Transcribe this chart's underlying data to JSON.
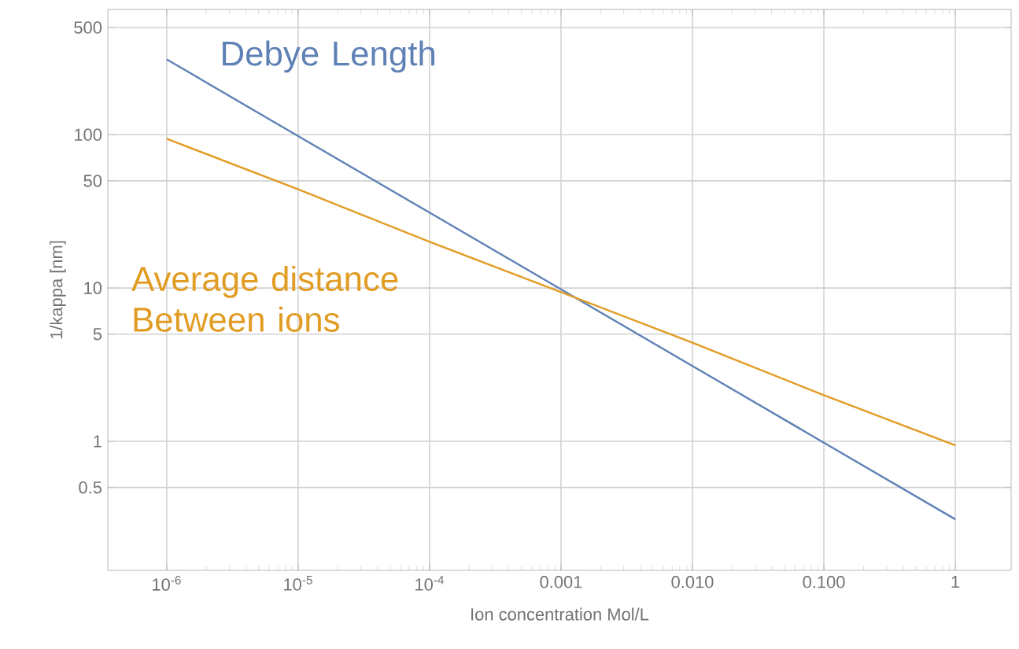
{
  "chart_data": {
    "type": "line",
    "xlabel": "Ion concentration Mol/L",
    "ylabel": "1/kappa [nm]",
    "log": "xy",
    "grid": true,
    "marker": "none",
    "line_style": "solid",
    "xlim": [
      3.56e-07,
      2.66
    ],
    "ylim": [
      0.144,
      656
    ],
    "xticks": [
      {
        "value": 1e-06,
        "label": "10$^{-6}$"
      },
      {
        "value": 1e-05,
        "label": "10$^{-5}$"
      },
      {
        "value": 0.0001,
        "label": "10$^{-4}$"
      },
      0.001,
      {
        "value": 0.01,
        "label": "0.010"
      },
      {
        "value": 0.1,
        "label": "0.100"
      },
      1
    ],
    "yticks": [
      0.5,
      1,
      5,
      10,
      50,
      100,
      500
    ],
    "series": [
      {
        "name": "Debye Length",
        "color": "#5e81b5",
        "x": [
          1e-06,
          1e-05,
          0.0001,
          0.001,
          0.01,
          0.1,
          1
        ],
        "values": [
          310,
          98,
          31,
          9.8,
          3.1,
          0.98,
          0.31
        ]
      },
      {
        "name": "Average distance Between ions",
        "color": "#e19c24",
        "x": [
          1e-06,
          1e-05,
          0.0001,
          0.001,
          0.01,
          0.1,
          1
        ],
        "values": [
          94,
          44,
          20,
          9.4,
          4.4,
          2,
          0.94
        ]
      }
    ]
  }
}
